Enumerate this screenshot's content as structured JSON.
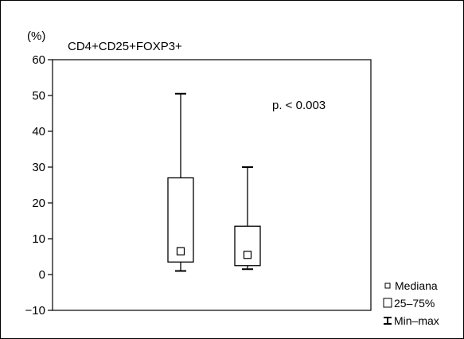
{
  "chart_data": {
    "type": "box",
    "title": "CD4+CD25+FOXP3+",
    "ylabel": "(%)",
    "ylim": [
      -10,
      60
    ],
    "yticks": [
      -10,
      0,
      10,
      20,
      30,
      40,
      50,
      60
    ],
    "ytick_labels": [
      "−10",
      "0",
      "10",
      "20",
      "30",
      "40",
      "50",
      "60"
    ],
    "annotation": "p. < 0.003",
    "grid": false,
    "legend_position": "bottom-right",
    "legend": {
      "median": "Mediana",
      "iqr": "25–75%",
      "range": "Min–max"
    },
    "boxes": [
      {
        "min": 1,
        "q1": 3.5,
        "median": 6.5,
        "q3": 27,
        "max": 50.5
      },
      {
        "min": 1.5,
        "q1": 2.5,
        "median": 5.5,
        "q3": 13.5,
        "max": 30
      }
    ]
  }
}
